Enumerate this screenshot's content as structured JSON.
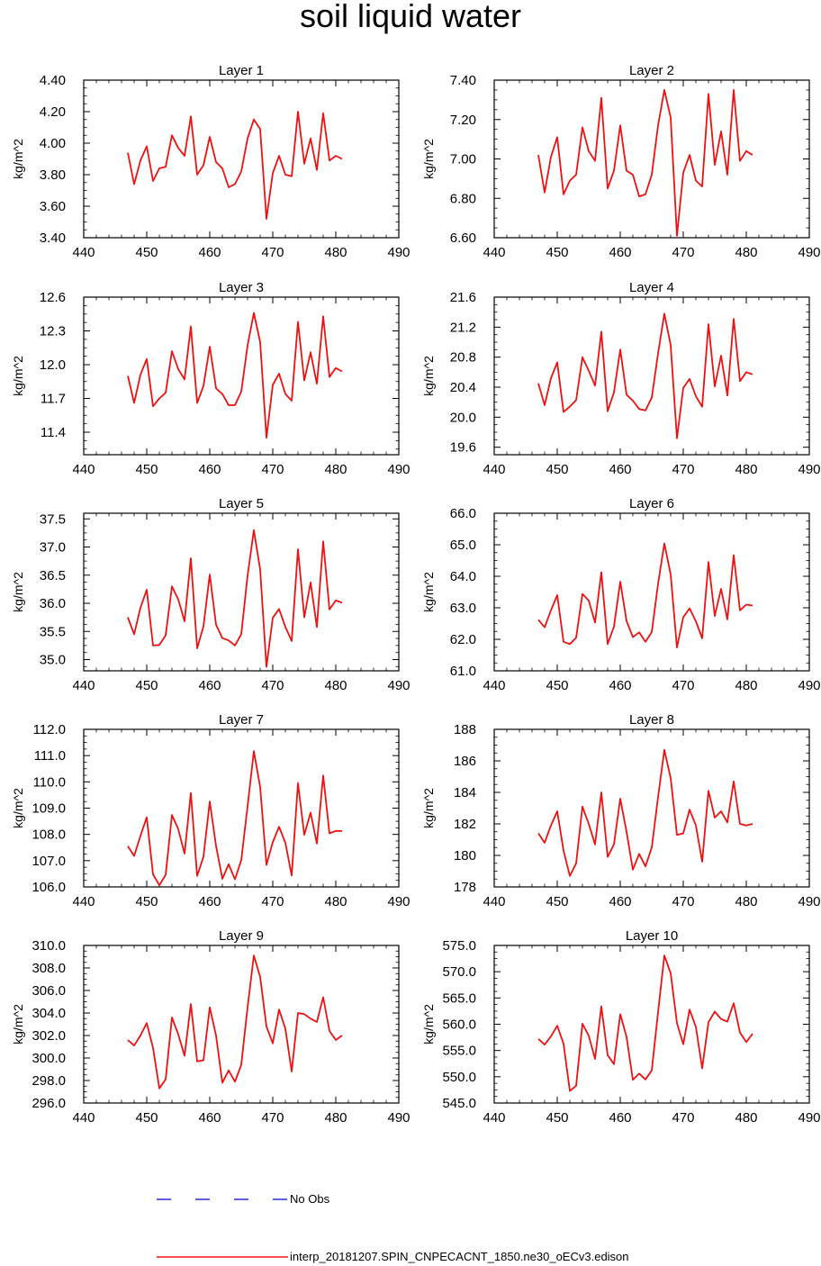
{
  "title": "soil liquid water",
  "legend": [
    {
      "label": "No Obs",
      "color": "#0000cc",
      "style": "dashed"
    },
    {
      "label": "interp_20181207.SPIN_CNPECACNT_1850.ne30_oECv3.edison",
      "color": "#ee1111",
      "style": "solid"
    }
  ],
  "chart_data": [
    {
      "type": "line",
      "title": "Layer 1",
      "ylabel": "kg/m^2",
      "xlim": [
        440,
        490
      ],
      "xticks": [
        440,
        450,
        460,
        470,
        480,
        490
      ],
      "ylim": [
        3.4,
        4.4
      ],
      "yticks": [
        "3.40",
        "3.60",
        "3.80",
        "4.00",
        "4.20",
        "4.40"
      ],
      "x": [
        447,
        448,
        449,
        450,
        451,
        452,
        453,
        454,
        455,
        456,
        457,
        458,
        459,
        460,
        461,
        462,
        463,
        464,
        465,
        466,
        467,
        468,
        469,
        470,
        471,
        472,
        473,
        474,
        475,
        476,
        477,
        478,
        479,
        480,
        481
      ],
      "series": [
        {
          "name": "interp_20181207.SPIN_CNPECACNT_1850.ne30_oECv3.edison",
          "values": [
            3.94,
            3.74,
            3.89,
            3.98,
            3.76,
            3.84,
            3.85,
            4.05,
            3.97,
            3.92,
            4.17,
            3.8,
            3.86,
            4.04,
            3.88,
            3.84,
            3.72,
            3.74,
            3.82,
            4.03,
            4.15,
            4.09,
            3.52,
            3.81,
            3.92,
            3.8,
            3.79,
            4.2,
            3.87,
            4.03,
            3.83,
            4.19,
            3.89,
            3.92,
            3.9
          ]
        }
      ]
    },
    {
      "type": "line",
      "title": "Layer 2",
      "ylabel": "kg/m^2",
      "xlim": [
        440,
        490
      ],
      "xticks": [
        440,
        450,
        460,
        470,
        480,
        490
      ],
      "ylim": [
        6.6,
        7.4
      ],
      "yticks": [
        "6.60",
        "6.80",
        "7.00",
        "7.20",
        "7.40"
      ],
      "x": [
        447,
        448,
        449,
        450,
        451,
        452,
        453,
        454,
        455,
        456,
        457,
        458,
        459,
        460,
        461,
        462,
        463,
        464,
        465,
        466,
        467,
        468,
        469,
        470,
        471,
        472,
        473,
        474,
        475,
        476,
        477,
        478,
        479,
        480,
        481
      ],
      "series": [
        {
          "name": "interp_20181207.SPIN_CNPECACNT_1850.ne30_oECv3.edison",
          "values": [
            7.02,
            6.83,
            7.01,
            7.11,
            6.82,
            6.89,
            6.92,
            7.16,
            7.04,
            6.99,
            7.31,
            6.85,
            6.94,
            7.17,
            6.94,
            6.92,
            6.81,
            6.82,
            6.92,
            7.17,
            7.35,
            7.21,
            6.61,
            6.93,
            7.02,
            6.89,
            6.86,
            7.33,
            6.97,
            7.14,
            6.92,
            7.35,
            6.99,
            7.04,
            7.02
          ]
        }
      ]
    },
    {
      "type": "line",
      "title": "Layer 3",
      "ylabel": "kg/m^2",
      "xlim": [
        440,
        490
      ],
      "xticks": [
        440,
        450,
        460,
        470,
        480,
        490
      ],
      "ylim": [
        11.2,
        12.6
      ],
      "yticks": [
        "11.4",
        "11.7",
        "12.0",
        "12.3",
        "12.6"
      ],
      "x": [
        447,
        448,
        449,
        450,
        451,
        452,
        453,
        454,
        455,
        456,
        457,
        458,
        459,
        460,
        461,
        462,
        463,
        464,
        465,
        466,
        467,
        468,
        469,
        470,
        471,
        472,
        473,
        474,
        475,
        476,
        477,
        478,
        479,
        480,
        481
      ],
      "series": [
        {
          "name": "interp_20181207.SPIN_CNPECACNT_1850.ne30_oECv3.edison",
          "values": [
            11.9,
            11.66,
            11.91,
            12.05,
            11.63,
            11.7,
            11.75,
            12.12,
            11.96,
            11.87,
            12.34,
            11.66,
            11.81,
            12.16,
            11.79,
            11.74,
            11.64,
            11.64,
            11.76,
            12.17,
            12.46,
            12.2,
            11.35,
            11.82,
            11.92,
            11.74,
            11.68,
            12.38,
            11.86,
            12.11,
            11.83,
            12.43,
            11.89,
            11.97,
            11.94
          ]
        }
      ]
    },
    {
      "type": "line",
      "title": "Layer 4",
      "ylabel": "kg/m^2",
      "xlim": [
        440,
        490
      ],
      "xticks": [
        440,
        450,
        460,
        470,
        480,
        490
      ],
      "ylim": [
        19.5,
        21.6
      ],
      "yticks": [
        "19.6",
        "20.0",
        "20.4",
        "20.8",
        "21.2",
        "21.6"
      ],
      "x": [
        447,
        448,
        449,
        450,
        451,
        452,
        453,
        454,
        455,
        456,
        457,
        458,
        459,
        460,
        461,
        462,
        463,
        464,
        465,
        466,
        467,
        468,
        469,
        470,
        471,
        472,
        473,
        474,
        475,
        476,
        477,
        478,
        479,
        480,
        481
      ],
      "series": [
        {
          "name": "interp_20181207.SPIN_CNPECACNT_1850.ne30_oECv3.edison",
          "values": [
            20.45,
            20.16,
            20.52,
            20.73,
            20.07,
            20.14,
            20.23,
            20.8,
            20.62,
            20.42,
            21.14,
            20.08,
            20.33,
            20.9,
            20.3,
            20.22,
            20.11,
            20.09,
            20.26,
            20.85,
            21.38,
            20.96,
            19.72,
            20.39,
            20.51,
            20.28,
            20.14,
            21.24,
            20.41,
            20.82,
            20.29,
            21.31,
            20.48,
            20.6,
            20.57
          ]
        }
      ]
    },
    {
      "type": "line",
      "title": "Layer 5",
      "ylabel": "kg/m^2",
      "xlim": [
        440,
        490
      ],
      "xticks": [
        440,
        450,
        460,
        470,
        480,
        490
      ],
      "ylim": [
        34.8,
        37.6
      ],
      "yticks": [
        "35.0",
        "35.5",
        "36.0",
        "36.5",
        "37.0",
        "37.5"
      ],
      "x": [
        447,
        448,
        449,
        450,
        451,
        452,
        453,
        454,
        455,
        456,
        457,
        458,
        459,
        460,
        461,
        462,
        463,
        464,
        465,
        466,
        467,
        468,
        469,
        470,
        471,
        472,
        473,
        474,
        475,
        476,
        477,
        478,
        479,
        480,
        481
      ],
      "series": [
        {
          "name": "interp_20181207.SPIN_CNPECACNT_1850.ne30_oECv3.edison",
          "values": [
            35.75,
            35.45,
            35.92,
            36.24,
            35.25,
            35.26,
            35.43,
            36.3,
            36.07,
            35.68,
            36.8,
            35.2,
            35.59,
            36.51,
            35.62,
            35.38,
            35.34,
            35.25,
            35.45,
            36.49,
            37.3,
            36.6,
            34.87,
            35.74,
            35.9,
            35.58,
            35.33,
            36.96,
            35.75,
            36.37,
            35.58,
            37.1,
            35.89,
            36.05,
            36.01
          ]
        }
      ]
    },
    {
      "type": "line",
      "title": "Layer 6",
      "ylabel": "kg/m^2",
      "xlim": [
        440,
        490
      ],
      "xticks": [
        440,
        450,
        460,
        470,
        480,
        490
      ],
      "ylim": [
        61.0,
        66.0
      ],
      "yticks": [
        "61.0",
        "62.0",
        "63.0",
        "64.0",
        "65.0",
        "66.0"
      ],
      "x": [
        447,
        448,
        449,
        450,
        451,
        452,
        453,
        454,
        455,
        456,
        457,
        458,
        459,
        460,
        461,
        462,
        463,
        464,
        465,
        466,
        467,
        468,
        469,
        470,
        471,
        472,
        473,
        474,
        475,
        476,
        477,
        478,
        479,
        480,
        481
      ],
      "series": [
        {
          "name": "interp_20181207.SPIN_CNPECACNT_1850.ne30_oECv3.edison",
          "values": [
            62.62,
            62.38,
            62.92,
            63.4,
            61.92,
            61.85,
            62.05,
            63.44,
            63.23,
            62.53,
            64.13,
            61.85,
            62.4,
            63.83,
            62.58,
            62.07,
            62.22,
            61.92,
            62.23,
            63.76,
            65.04,
            64.06,
            61.74,
            62.7,
            62.98,
            62.57,
            62.03,
            64.45,
            62.74,
            63.6,
            62.63,
            64.67,
            62.92,
            63.1,
            63.07
          ]
        }
      ]
    },
    {
      "type": "line",
      "title": "Layer 7",
      "ylabel": "kg/m^2",
      "xlim": [
        440,
        490
      ],
      "xticks": [
        440,
        450,
        460,
        470,
        480,
        490
      ],
      "ylim": [
        106.0,
        112.0
      ],
      "yticks": [
        "106.0",
        "107.0",
        "108.0",
        "109.0",
        "110.0",
        "111.0",
        "112.0"
      ],
      "x": [
        447,
        448,
        449,
        450,
        451,
        452,
        453,
        454,
        455,
        456,
        457,
        458,
        459,
        460,
        461,
        462,
        463,
        464,
        465,
        466,
        467,
        468,
        469,
        470,
        471,
        472,
        473,
        474,
        475,
        476,
        477,
        478,
        479,
        480,
        481
      ],
      "series": [
        {
          "name": "interp_20181207.SPIN_CNPECACNT_1850.ne30_oECv3.edison",
          "values": [
            107.55,
            107.18,
            107.94,
            108.65,
            106.48,
            106.06,
            106.46,
            108.74,
            108.2,
            107.27,
            109.58,
            106.42,
            107.15,
            109.25,
            107.56,
            106.31,
            106.86,
            106.29,
            107.02,
            109.07,
            111.17,
            109.8,
            106.84,
            107.7,
            108.29,
            107.68,
            106.44,
            109.95,
            107.98,
            108.83,
            107.65,
            110.24,
            108.04,
            108.13,
            108.13
          ]
        }
      ]
    },
    {
      "type": "line",
      "title": "Layer 8",
      "ylabel": "kg/m^2",
      "xlim": [
        440,
        490
      ],
      "xticks": [
        440,
        450,
        460,
        470,
        480,
        490
      ],
      "ylim": [
        178,
        188
      ],
      "yticks": [
        "178",
        "180",
        "182",
        "184",
        "186",
        "188"
      ],
      "x": [
        447,
        448,
        449,
        450,
        451,
        452,
        453,
        454,
        455,
        456,
        457,
        458,
        459,
        460,
        461,
        462,
        463,
        464,
        465,
        466,
        467,
        468,
        469,
        470,
        471,
        472,
        473,
        474,
        475,
        476,
        477,
        478,
        479,
        480,
        481
      ],
      "series": [
        {
          "name": "interp_20181207.SPIN_CNPECACNT_1850.ne30_oECv3.edison",
          "values": [
            181.4,
            180.8,
            181.9,
            182.8,
            180.3,
            178.7,
            179.5,
            183.1,
            182.0,
            180.7,
            184.0,
            179.9,
            180.7,
            183.6,
            181.5,
            179.1,
            180.1,
            179.3,
            180.5,
            183.7,
            186.7,
            184.9,
            181.3,
            181.4,
            182.9,
            181.9,
            179.6,
            184.1,
            182.4,
            182.8,
            182.1,
            184.7,
            182.0,
            181.9,
            182.0
          ]
        }
      ]
    },
    {
      "type": "line",
      "title": "Layer 9",
      "ylabel": "kg/m^2",
      "xlim": [
        440,
        490
      ],
      "xticks": [
        440,
        450,
        460,
        470,
        480,
        490
      ],
      "ylim": [
        296.0,
        310.0
      ],
      "yticks": [
        "296.0",
        "298.0",
        "300.0",
        "302.0",
        "304.0",
        "306.0",
        "308.0",
        "310.0"
      ],
      "x": [
        447,
        448,
        449,
        450,
        451,
        452,
        453,
        454,
        455,
        456,
        457,
        458,
        459,
        460,
        461,
        462,
        463,
        464,
        465,
        466,
        467,
        468,
        469,
        470,
        471,
        472,
        473,
        474,
        475,
        476,
        477,
        478,
        479,
        480,
        481
      ],
      "series": [
        {
          "name": "interp_20181207.SPIN_CNPECACNT_1850.ne30_oECv3.edison",
          "values": [
            301.6,
            301.1,
            302.0,
            303.1,
            300.9,
            297.3,
            298.1,
            303.6,
            302.1,
            300.2,
            304.8,
            299.7,
            299.8,
            304.5,
            302.0,
            297.8,
            298.9,
            297.9,
            299.4,
            304.5,
            309.1,
            307.2,
            302.8,
            301.3,
            304.3,
            302.6,
            298.8,
            304.0,
            303.9,
            303.5,
            303.2,
            305.4,
            302.4,
            301.6,
            302.0
          ]
        }
      ]
    },
    {
      "type": "line",
      "title": "Layer 10",
      "ylabel": "kg/m^2",
      "xlim": [
        440,
        490
      ],
      "xticks": [
        440,
        450,
        460,
        470,
        480,
        490
      ],
      "ylim": [
        545.0,
        575.0
      ],
      "yticks": [
        "545.0",
        "550.0",
        "555.0",
        "560.0",
        "565.0",
        "570.0",
        "575.0"
      ],
      "x": [
        447,
        448,
        449,
        450,
        451,
        452,
        453,
        454,
        455,
        456,
        457,
        458,
        459,
        460,
        461,
        462,
        463,
        464,
        465,
        466,
        467,
        468,
        469,
        470,
        471,
        472,
        473,
        474,
        475,
        476,
        477,
        478,
        479,
        480,
        481
      ],
      "series": [
        {
          "name": "interp_20181207.SPIN_CNPECACNT_1850.ne30_oECv3.edison",
          "values": [
            557.2,
            556.1,
            557.7,
            559.7,
            556.3,
            547.3,
            548.3,
            560.1,
            557.8,
            553.4,
            563.4,
            554.1,
            552.4,
            561.9,
            557.6,
            549.4,
            550.6,
            549.5,
            551.2,
            562.3,
            573.1,
            569.7,
            560.2,
            556.2,
            562.8,
            559.5,
            551.6,
            560.4,
            562.4,
            561.0,
            560.5,
            564.0,
            558.4,
            556.6,
            558.2
          ]
        }
      ]
    }
  ]
}
